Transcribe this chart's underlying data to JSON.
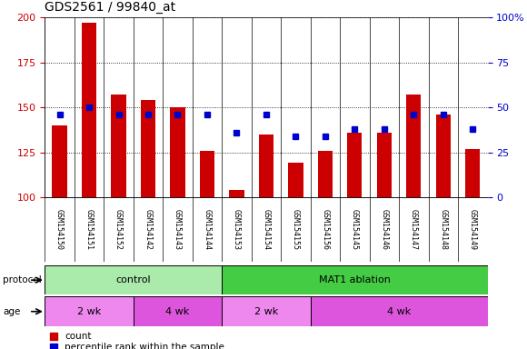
{
  "title": "GDS2561 / 99840_at",
  "samples": [
    "GSM154150",
    "GSM154151",
    "GSM154152",
    "GSM154142",
    "GSM154143",
    "GSM154144",
    "GSM154153",
    "GSM154154",
    "GSM154155",
    "GSM154156",
    "GSM154145",
    "GSM154146",
    "GSM154147",
    "GSM154148",
    "GSM154149"
  ],
  "counts": [
    140,
    197,
    157,
    154,
    150,
    126,
    104,
    135,
    119,
    126,
    136,
    136,
    157,
    146,
    127
  ],
  "percentiles": [
    46,
    50,
    46,
    46,
    46,
    46,
    36,
    46,
    34,
    34,
    38,
    38,
    46,
    46,
    38
  ],
  "ymin": 100,
  "ymax": 200,
  "y2min": 0,
  "y2max": 100,
  "yticks": [
    100,
    125,
    150,
    175,
    200
  ],
  "y2ticks": [
    0,
    25,
    50,
    75,
    100
  ],
  "y2ticklabels": [
    "0",
    "25",
    "50",
    "75",
    "100%"
  ],
  "bar_color": "#cc0000",
  "dot_color": "#0000cc",
  "bar_width": 0.5,
  "protocol_groups": [
    {
      "label": "control",
      "start": 0,
      "end": 6,
      "color": "#aaeaaa"
    },
    {
      "label": "MAT1 ablation",
      "start": 6,
      "end": 15,
      "color": "#44cc44"
    }
  ],
  "age_groups": [
    {
      "label": "2 wk",
      "start": 0,
      "end": 3,
      "color": "#ee88ee"
    },
    {
      "label": "4 wk",
      "start": 3,
      "end": 6,
      "color": "#dd55dd"
    },
    {
      "label": "2 wk",
      "start": 6,
      "end": 9,
      "color": "#ee88ee"
    },
    {
      "label": "4 wk",
      "start": 9,
      "end": 15,
      "color": "#dd55dd"
    }
  ],
  "ylabel_left_color": "#cc0000",
  "ylabel_right_color": "#0000cc",
  "grid_color": "#000000",
  "plot_bg_color": "#ffffff",
  "label_area_color": "#cccccc",
  "border_color": "#000000"
}
